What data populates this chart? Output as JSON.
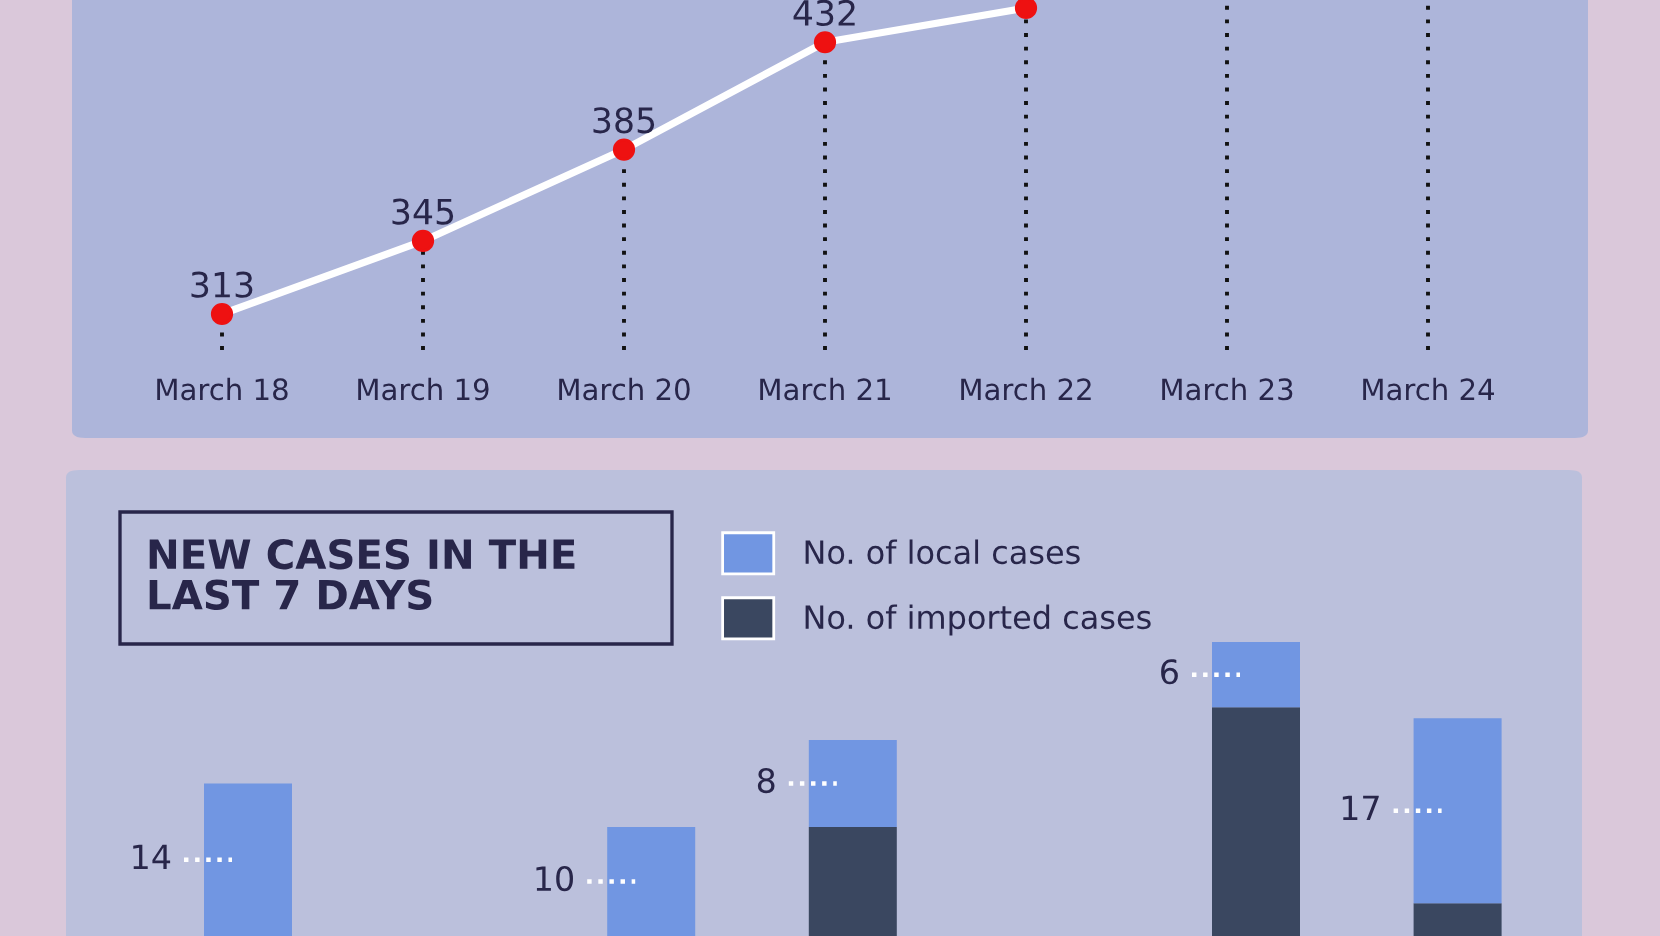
{
  "chart_data": [
    {
      "type": "line",
      "categories": [
        "March 18",
        "March 19",
        "March 20",
        "March 21",
        "March 22",
        "March 23",
        "March 24"
      ],
      "series": [
        {
          "color": "#ffffff",
          "values": [
            313,
            345,
            385,
            432,
            447,
            null,
            null
          ],
          "value_labels": [
            "313",
            "345",
            "385",
            "432",
            null,
            null,
            null
          ]
        }
      ],
      "marker": "circle",
      "line_style": "solid",
      "grid": "x",
      "legend": false
    },
    {
      "type": "bar",
      "title": "NEW CASES IN THE LAST 7 DAYS",
      "stacked": true,
      "legend": "top",
      "categories": [
        null,
        null,
        null,
        null,
        null,
        null,
        null
      ],
      "series": [
        {
          "name": "No. of imported cases",
          "color": "#3a4760",
          "values": [
            null,
            null,
            null,
            10,
            null,
            21,
            3
          ]
        },
        {
          "name": "No. of local cases",
          "color": "#7196e2",
          "values": [
            14,
            null,
            10,
            8,
            null,
            6,
            17
          ],
          "value_labels": [
            "14",
            null,
            "10",
            "8",
            null,
            "6",
            "17"
          ]
        }
      ]
    }
  ]
}
